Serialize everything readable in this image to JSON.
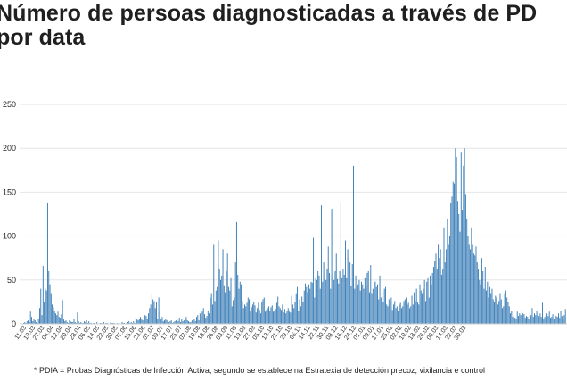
{
  "chart_data": {
    "type": "bar",
    "title_line1": "Número de persoas diagnosticadas a través de PD",
    "title_line2": "por data",
    "footnote": "* PDIA = Probas Diagnósticas de Infección Activa, segundo se establece na Estratexia de detección precoz, vixilancia e control",
    "ylim": [
      0,
      250
    ],
    "yticks": [
      0,
      50,
      100,
      150,
      200,
      250
    ],
    "grid": true,
    "bar_color": "#3d7fb8",
    "xtick_labels": [
      "11.03",
      "19.03",
      "27.03",
      "04.04",
      "12.04",
      "20.04",
      "28.04",
      "06.05",
      "14.05",
      "22.05",
      "30.05",
      "07.06",
      "15.06",
      "23.06",
      "01.07",
      "09.07",
      "17.07",
      "25.07",
      "02.08",
      "10.08",
      "18.08",
      "26.08",
      "03.09",
      "11.09",
      "19.09",
      "27.09",
      "05.10",
      "13.10",
      "21.10",
      "29.10",
      "06.11",
      "14.11",
      "22.11",
      "30.11",
      "08.12",
      "16.12",
      "24.12",
      "01.01",
      "09.01",
      "17.01",
      "25.01",
      "02.02",
      "10.02",
      "18.02",
      "26.02",
      "06.03",
      "14.03",
      "22.03",
      "30.03"
    ],
    "xtick_interval": 8,
    "values": [
      1,
      2,
      1,
      3,
      4,
      2,
      14,
      8,
      3,
      5,
      4,
      2,
      1,
      6,
      18,
      40,
      10,
      66,
      25,
      40,
      38,
      138,
      60,
      45,
      35,
      22,
      19,
      15,
      12,
      10,
      14,
      8,
      7,
      11,
      27,
      5,
      3,
      4,
      2,
      1,
      4,
      3,
      2,
      2,
      6,
      2,
      1,
      13,
      3,
      1,
      2,
      1,
      1,
      3,
      2,
      4,
      1,
      3,
      1,
      1,
      0,
      1,
      1,
      0,
      2,
      0,
      0,
      1,
      1,
      0,
      2,
      0,
      1,
      1,
      0,
      0,
      2,
      1,
      1,
      1,
      0,
      0,
      1,
      0,
      0,
      0,
      2,
      1,
      1,
      0,
      1,
      2,
      3,
      1,
      2,
      1,
      3,
      1,
      7,
      5,
      4,
      6,
      8,
      5,
      4,
      7,
      10,
      9,
      6,
      12,
      18,
      22,
      33,
      28,
      26,
      18,
      25,
      6,
      30,
      14,
      5,
      8,
      3,
      4,
      6,
      4,
      5,
      2,
      3,
      4,
      1,
      2,
      3,
      4,
      5,
      3,
      7,
      2,
      6,
      3,
      4,
      5,
      8,
      4,
      3,
      2,
      2,
      4,
      5,
      6,
      3,
      8,
      10,
      4,
      12,
      9,
      14,
      18,
      11,
      7,
      9,
      15,
      12,
      30,
      35,
      22,
      90,
      26,
      38,
      42,
      95,
      62,
      50,
      55,
      85,
      44,
      36,
      60,
      80,
      42,
      38,
      52,
      20,
      27,
      30,
      70,
      116,
      56,
      40,
      48,
      45,
      26,
      18,
      22,
      20,
      24,
      30,
      28,
      15,
      19,
      22,
      25,
      21,
      13,
      18,
      24,
      16,
      12,
      25,
      28,
      30,
      14,
      16,
      18,
      20,
      15,
      19,
      21,
      14,
      15,
      17,
      24,
      31,
      20,
      18,
      16,
      22,
      13,
      17,
      12,
      15,
      18,
      14,
      13,
      32,
      22,
      18,
      25,
      35,
      42,
      15,
      28,
      20,
      31,
      25,
      38,
      46,
      42,
      36,
      45,
      40,
      48,
      47,
      98,
      30,
      52,
      50,
      60,
      55,
      40,
      135,
      48,
      70,
      58,
      50,
      62,
      88,
      58,
      40,
      131,
      56,
      50,
      60,
      80,
      51,
      46,
      60,
      138,
      52,
      62,
      56,
      95,
      52,
      85,
      75,
      70,
      43,
      68,
      180,
      40,
      55,
      42,
      45,
      50,
      38,
      48,
      45,
      40,
      52,
      43,
      58,
      60,
      36,
      67,
      35,
      40,
      50,
      48,
      42,
      45,
      28,
      55,
      30,
      36,
      25,
      40,
      42,
      22,
      20,
      28,
      25,
      30,
      16,
      22,
      26,
      18,
      20,
      15,
      22,
      24,
      18,
      20,
      26,
      28,
      30,
      22,
      24,
      18,
      20,
      32,
      22,
      36,
      26,
      40,
      25,
      22,
      45,
      38,
      35,
      40,
      50,
      26,
      48,
      52,
      30,
      55,
      45,
      58,
      65,
      72,
      80,
      62,
      90,
      75,
      85,
      56,
      62,
      110,
      70,
      85,
      120,
      90,
      100,
      138,
      145,
      162,
      160,
      200,
      190,
      140,
      125,
      105,
      196,
      130,
      180,
      200,
      148,
      120,
      100,
      90,
      85,
      110,
      90,
      80,
      78,
      88,
      70,
      62,
      50,
      45,
      75,
      60,
      40,
      65,
      38,
      48,
      30,
      42,
      35,
      40,
      28,
      25,
      32,
      30,
      22,
      26,
      35,
      28,
      18,
      20,
      35,
      38,
      30,
      25,
      20,
      12,
      15,
      8,
      10,
      7,
      6,
      14,
      9,
      12,
      10,
      15,
      12,
      11,
      7,
      9,
      8,
      6,
      13,
      10,
      18,
      8,
      12,
      10,
      15,
      11,
      9,
      12,
      8,
      24,
      6,
      8,
      10,
      12,
      9,
      14,
      7,
      8,
      11,
      6,
      10,
      9,
      8,
      12,
      7,
      15,
      9,
      6,
      10,
      17
    ]
  }
}
